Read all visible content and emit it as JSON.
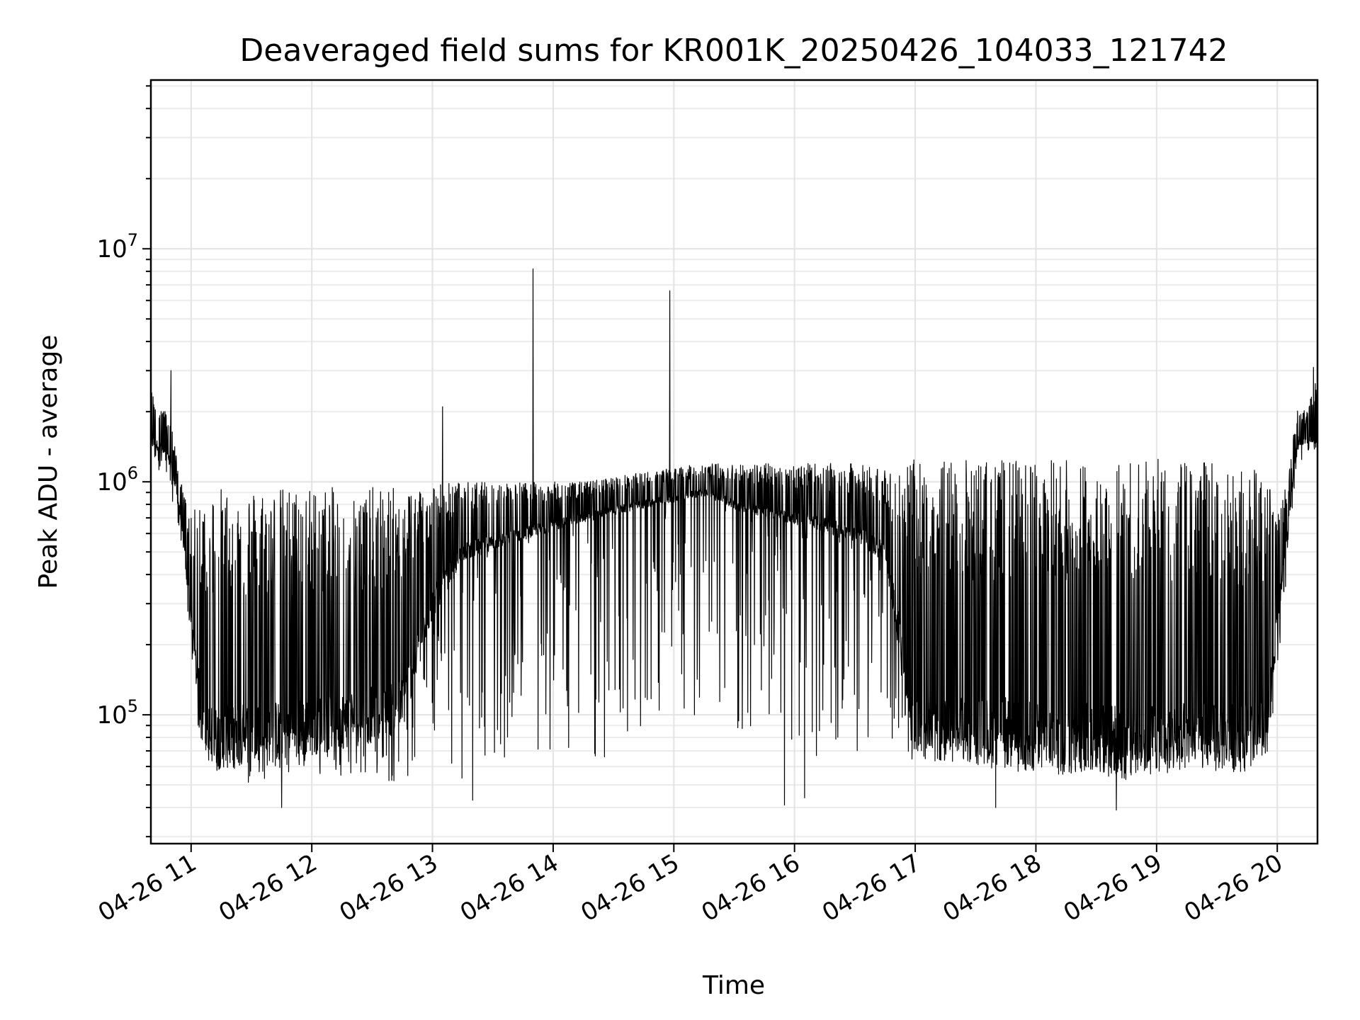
{
  "chart_data": {
    "type": "line",
    "title": "Deaveraged field sums for KR001K_20250426_104033_121742",
    "xlabel": "Time",
    "ylabel": "Peak ADU - average",
    "y_scale": "log",
    "ylim": [
      28000,
      53000000
    ],
    "xlim": [
      "2025-04-26 10:40",
      "2025-04-26 20:20"
    ],
    "grid": true,
    "x_tick_labels": [
      "04-26 11",
      "04-26 12",
      "04-26 13",
      "04-26 14",
      "04-26 15",
      "04-26 16",
      "04-26 17",
      "04-26 18",
      "04-26 19",
      "04-26 20"
    ],
    "x_ticks": [
      "2025-04-26 11:00",
      "2025-04-26 12:00",
      "2025-04-26 13:00",
      "2025-04-26 14:00",
      "2025-04-26 15:00",
      "2025-04-26 16:00",
      "2025-04-26 17:00",
      "2025-04-26 18:00",
      "2025-04-26 19:00",
      "2025-04-26 20:00"
    ],
    "y_ticks": [
      {
        "base": "10",
        "exp": "5",
        "value": 100000
      },
      {
        "base": "10",
        "exp": "6",
        "value": 1000000
      },
      {
        "base": "10",
        "exp": "7",
        "value": 10000000
      }
    ],
    "series": [
      {
        "color": "#000000",
        "x": [
          "2025-04-26 10:40",
          "2025-04-26 10:45",
          "2025-04-26 10:50",
          "2025-04-26 10:55",
          "2025-04-26 11:00",
          "2025-04-26 11:05",
          "2025-04-26 11:10",
          "2025-04-26 11:15",
          "2025-04-26 11:20",
          "2025-04-26 11:30",
          "2025-04-26 11:45",
          "2025-04-26 12:00",
          "2025-04-26 12:15",
          "2025-04-26 12:30",
          "2025-04-26 12:45",
          "2025-04-26 13:00",
          "2025-04-26 13:15",
          "2025-04-26 13:30",
          "2025-04-26 13:45",
          "2025-04-26 14:00",
          "2025-04-26 14:15",
          "2025-04-26 14:30",
          "2025-04-26 14:45",
          "2025-04-26 15:00",
          "2025-04-26 15:15",
          "2025-04-26 15:30",
          "2025-04-26 15:45",
          "2025-04-26 16:00",
          "2025-04-26 16:15",
          "2025-04-26 16:30",
          "2025-04-26 16:45",
          "2025-04-26 17:00",
          "2025-04-26 17:15",
          "2025-04-26 17:30",
          "2025-04-26 17:45",
          "2025-04-26 18:00",
          "2025-04-26 18:15",
          "2025-04-26 18:30",
          "2025-04-26 18:45",
          "2025-04-26 19:00",
          "2025-04-26 19:15",
          "2025-04-26 19:30",
          "2025-04-26 19:45",
          "2025-04-26 19:55",
          "2025-04-26 20:00",
          "2025-04-26 20:05",
          "2025-04-26 20:10",
          "2025-04-26 20:15",
          "2025-04-26 20:20"
        ],
        "low": [
          1200000,
          1100000,
          900000,
          500000,
          150000,
          70000,
          60000,
          55000,
          52000,
          50000,
          55000,
          55000,
          55000,
          52000,
          50000,
          48000,
          48000,
          50000,
          52000,
          55000,
          60000,
          62000,
          70000,
          80000,
          90000,
          80000,
          75000,
          70000,
          65000,
          62000,
          60000,
          65000,
          62000,
          60000,
          58000,
          55000,
          55000,
          55000,
          52000,
          55000,
          58000,
          60000,
          60000,
          62000,
          150000,
          400000,
          1200000,
          1300000,
          1400000
        ],
        "base": [
          1500000,
          1400000,
          1200000,
          700000,
          250000,
          100000,
          80000,
          80000,
          80000,
          85000,
          85000,
          90000,
          95000,
          100000,
          110000,
          300000,
          500000,
          550000,
          600000,
          650000,
          700000,
          750000,
          800000,
          850000,
          900000,
          800000,
          750000,
          700000,
          650000,
          600000,
          500000,
          90000,
          85000,
          85000,
          85000,
          80000,
          80000,
          80000,
          78000,
          80000,
          80000,
          80000,
          80000,
          85000,
          250000,
          600000,
          1500000,
          1500000,
          1500000
        ],
        "high": [
          2500000,
          2200000,
          1800000,
          1000000,
          700000,
          900000,
          950000,
          950000,
          950000,
          950000,
          950000,
          950000,
          950000,
          950000,
          950000,
          1000000,
          1000000,
          1000000,
          1000000,
          1000000,
          1000000,
          1050000,
          1100000,
          1150000,
          1200000,
          1200000,
          1200000,
          1200000,
          1200000,
          1200000,
          1150000,
          1250000,
          1250000,
          1250000,
          1250000,
          1250000,
          1250000,
          1250000,
          1250000,
          1250000,
          1250000,
          1250000,
          1200000,
          1000000,
          800000,
          1000000,
          2100000,
          2000000,
          3000000
        ],
        "spikes": [
          {
            "x": "2025-04-26 10:50",
            "y": 3000000
          },
          {
            "x": "2025-04-26 11:45",
            "y": 40000
          },
          {
            "x": "2025-04-26 13:05",
            "y": 2100000
          },
          {
            "x": "2025-04-26 13:20",
            "y": 43000
          },
          {
            "x": "2025-04-26 13:50",
            "y": 8200000
          },
          {
            "x": "2025-04-26 14:58",
            "y": 6600000
          },
          {
            "x": "2025-04-26 15:55",
            "y": 41000
          },
          {
            "x": "2025-04-26 16:05",
            "y": 44000
          },
          {
            "x": "2025-04-26 17:40",
            "y": 40000
          },
          {
            "x": "2025-04-26 18:40",
            "y": 39000
          },
          {
            "x": "2025-04-26 20:18",
            "y": 3100000
          }
        ]
      }
    ]
  }
}
